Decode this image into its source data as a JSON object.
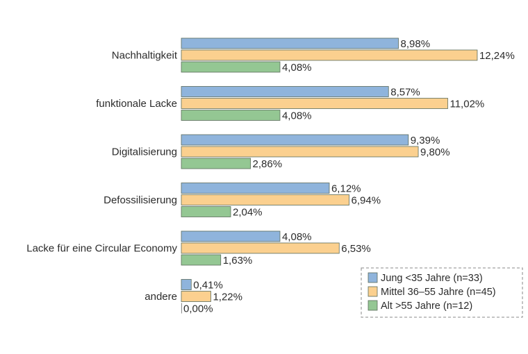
{
  "chart_data": {
    "type": "bar",
    "orientation": "horizontal",
    "categories": [
      "Nachhaltigkeit",
      "funktionale Lacke",
      "Digitalisierung",
      "Defossilisierung",
      "Lacke für eine Circular Economy",
      "andere"
    ],
    "series": [
      {
        "name": "Jung <35 Jahre (n=33)",
        "color": "#8fb4dc",
        "values": [
          8.98,
          8.57,
          9.39,
          6.12,
          4.08,
          0.41
        ],
        "labels": [
          "8,98%",
          "8,57%",
          "9,39%",
          "6,12%",
          "4,08%",
          "0,41%"
        ]
      },
      {
        "name": "Mittel 36–55 Jahre (n=45)",
        "color": "#fbd08f",
        "values": [
          12.24,
          11.02,
          9.8,
          6.94,
          6.53,
          1.22
        ],
        "labels": [
          "12,24%",
          "11,02%",
          "9,80%",
          "6,94%",
          "6,53%",
          "1,22%"
        ]
      },
      {
        "name": "Alt >55 Jahre (n=12)",
        "color": "#94c793",
        "values": [
          4.08,
          4.08,
          2.86,
          2.04,
          1.63,
          0.0
        ],
        "labels": [
          "4,08%",
          "4,08%",
          "2,86%",
          "2,04%",
          "1,63%",
          "0,00%"
        ]
      }
    ],
    "legend": {
      "position": "bottom-right",
      "border": "dashed"
    },
    "grid": false,
    "xlim": [
      0,
      13
    ]
  }
}
